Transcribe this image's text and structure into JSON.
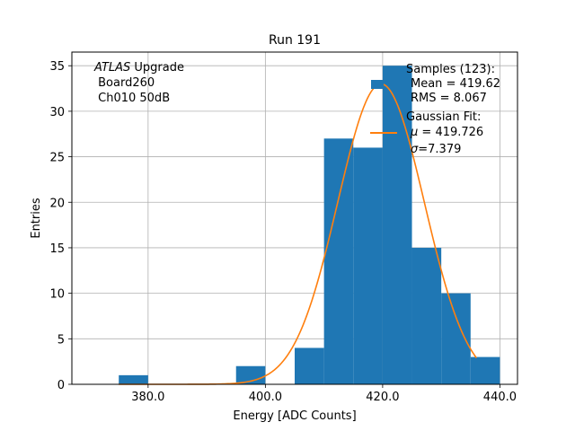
{
  "chart_data": {
    "type": "bar",
    "title": "Run 191",
    "xlabel": "Energy [ADC Counts]",
    "ylabel": "Entries",
    "xlim": [
      367,
      443
    ],
    "ylim": [
      0,
      36.5
    ],
    "grid": true,
    "xticks": [
      380,
      400,
      420,
      440
    ],
    "xtick_labels": [
      "380.0",
      "400.0",
      "420.0",
      "440.0"
    ],
    "yticks": [
      0,
      5,
      10,
      15,
      20,
      25,
      30,
      35
    ],
    "ytick_labels": [
      "0",
      "5",
      "10",
      "15",
      "20",
      "25",
      "30",
      "35"
    ],
    "bin_edges": [
      375,
      380,
      385,
      390,
      395,
      400,
      405,
      410,
      415,
      420,
      425,
      430,
      435,
      440
    ],
    "counts": [
      1,
      0,
      0,
      0,
      2,
      0,
      4,
      27,
      26,
      35,
      15,
      10,
      3
    ],
    "fit_curve": {
      "name": "Gaussian Fit",
      "mu": 419.726,
      "sigma": 7.379,
      "amplitude": 33,
      "x_range": [
        375,
        436
      ]
    },
    "annotation": {
      "italic": "ATLAS",
      "text": " Upgrade",
      "line2": " Board260",
      "line3": " Ch010 50dB"
    },
    "legend": {
      "placement": "top-right",
      "samples_line1": "Samples (123):",
      "samples_line2": "Mean = 419.62",
      "samples_line3": "RMS = 8.067",
      "fit_line1": "Gaussian Fit:",
      "fit_line2": " = 419.726",
      "fit_line2_symbol": "μ",
      "fit_line3": "=7.379",
      "fit_line3_symbol": "σ"
    },
    "colors": {
      "bars": "#1f77b4",
      "fit": "#ff7f0e",
      "grid": "#b0b0b0"
    }
  }
}
